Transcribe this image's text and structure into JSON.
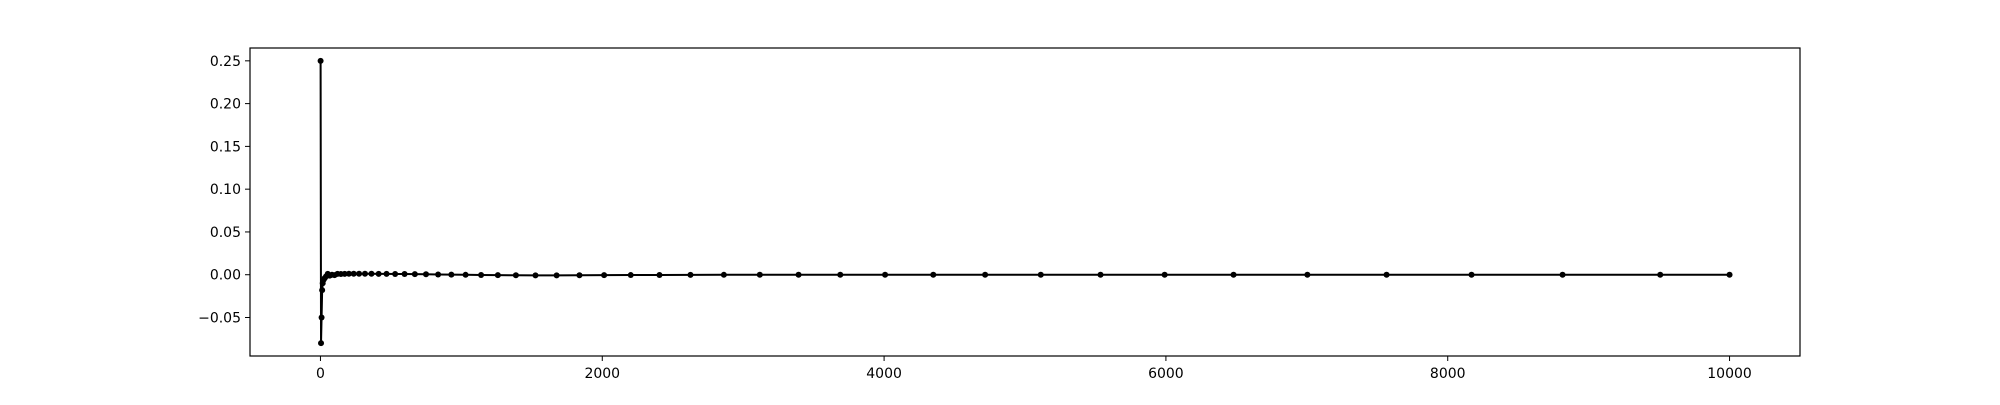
{
  "chart_data": {
    "type": "line",
    "title": "",
    "xlabel": "",
    "ylabel": "",
    "xlim": [
      -500,
      10500
    ],
    "ylim": [
      -0.095,
      0.265
    ],
    "xticks": [
      0,
      2000,
      4000,
      6000,
      8000,
      10000
    ],
    "xtick_labels": [
      "0",
      "2000",
      "4000",
      "6000",
      "8000",
      "10000"
    ],
    "yticks": [
      -0.05,
      0.0,
      0.05,
      0.1,
      0.15,
      0.2,
      0.25
    ],
    "ytick_labels": [
      "−0.05",
      "0.00",
      "0.05",
      "0.10",
      "0.15",
      "0.20",
      "0.25"
    ],
    "grid": false,
    "legend": null,
    "series": [
      {
        "color": "#000000",
        "marker": "circle",
        "x": [
          1,
          4,
          8,
          12,
          16,
          22,
          30,
          40,
          52,
          66,
          82,
          100,
          121,
          145,
          172,
          202,
          236,
          274,
          316,
          362,
          413,
          469,
          530,
          597,
          670,
          749,
          835,
          929,
          1030,
          1140,
          1259,
          1387,
          1526,
          1676,
          1838,
          2013,
          2202,
          2406,
          2626,
          2863,
          3118,
          3393,
          3689,
          4007,
          4349,
          4717,
          5112,
          5536,
          5991,
          6480,
          7004,
          7566,
          8169,
          8815,
          9508,
          10000
        ],
        "y": [
          0.25,
          -0.08,
          -0.05,
          -0.018,
          -0.01,
          -0.006,
          -0.004,
          -0.002,
          0.001,
          -0.001,
          0.0,
          -0.0005,
          0.001,
          0.0008,
          0.001,
          0.0012,
          0.0012,
          0.0012,
          0.0011,
          0.0011,
          0.001,
          0.001,
          0.0009,
          0.0008,
          0.0007,
          0.0005,
          0.0003,
          0.0001,
          -0.0001,
          -0.0003,
          -0.0005,
          -0.0006,
          -0.0007,
          -0.0007,
          -0.0006,
          -0.0005,
          -0.0004,
          -0.0003,
          -0.0002,
          -0.0001,
          0.0,
          0.0,
          0.0,
          0.0,
          0.0,
          0.0,
          0.0,
          0.0,
          0.0,
          0.0,
          0.0,
          0.0,
          0.0,
          0.0,
          0.0,
          0.0
        ]
      }
    ]
  }
}
